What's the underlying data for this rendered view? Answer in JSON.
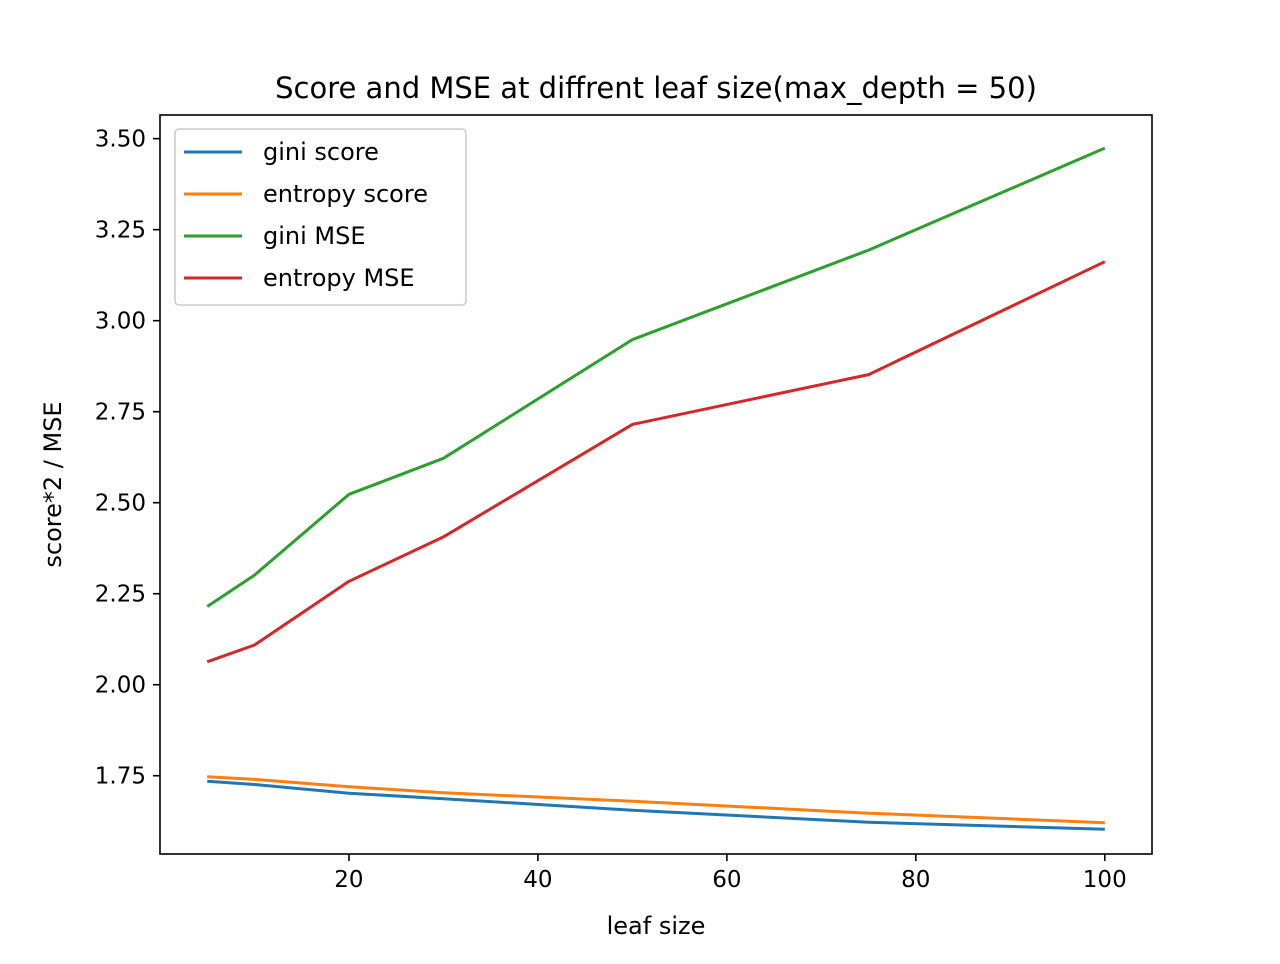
{
  "chart_data": {
    "type": "line",
    "title": "Score and MSE at diffrent leaf size(max_depth = 50)",
    "xlabel": "leaf size",
    "ylabel": "score*2 / MSE",
    "x": [
      5,
      10,
      20,
      30,
      50,
      75,
      100
    ],
    "xlim": [
      0,
      105
    ],
    "ylim": [
      1.535,
      3.565
    ],
    "xticks": [
      20,
      40,
      60,
      80,
      100
    ],
    "xtick_labels": [
      "20",
      "40",
      "60",
      "80",
      "100"
    ],
    "yticks": [
      1.75,
      2.0,
      2.25,
      2.5,
      2.75,
      3.0,
      3.25,
      3.5
    ],
    "ytick_labels": [
      "1.75",
      "2.00",
      "2.25",
      "2.50",
      "2.75",
      "3.00",
      "3.25",
      "3.50"
    ],
    "grid": false,
    "legend_position": "upper-left",
    "series": [
      {
        "name": "gini score",
        "color": "#1f77b4",
        "values": [
          1.735,
          1.726,
          1.702,
          1.687,
          1.655,
          1.622,
          1.603
        ]
      },
      {
        "name": "entropy score",
        "color": "#ff7f0e",
        "values": [
          1.747,
          1.74,
          1.72,
          1.703,
          1.68,
          1.647,
          1.621
        ]
      },
      {
        "name": "gini MSE",
        "color": "#2ca02c",
        "values": [
          2.215,
          2.301,
          2.523,
          2.622,
          2.948,
          3.194,
          3.474
        ]
      },
      {
        "name": "entropy MSE",
        "color": "#d62728",
        "values": [
          2.063,
          2.109,
          2.284,
          2.406,
          2.715,
          2.852,
          3.162
        ]
      }
    ]
  }
}
